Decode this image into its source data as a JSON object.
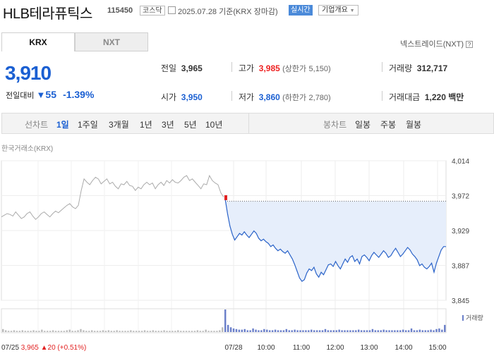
{
  "header": {
    "name": "HLB테라퓨틱스",
    "code": "115450",
    "market": "코스닥",
    "date": "2025.07.28",
    "basis": "기준(KRX 장마감)",
    "realtime": "실시간",
    "overview": "기업개요"
  },
  "tabs": {
    "krx": "KRX",
    "nxt": "NXT",
    "nxt_link": "넥스트레이드(NXT)"
  },
  "quote": {
    "price": "3,910",
    "change_label": "전일대비",
    "change": "55",
    "change_pct": "-1.39%"
  },
  "stats": {
    "prev_label": "전일",
    "prev": "3,965",
    "high_label": "고가",
    "high": "3,985",
    "upper_label": "(상한가",
    "upper": "5,150)",
    "volume_label": "거래량",
    "volume": "312,717",
    "open_label": "시가",
    "open": "3,950",
    "low_label": "저가",
    "low": "3,860",
    "lower_label": "(하한가",
    "lower": "2,780)",
    "amount_label": "거래대금",
    "amount": "1,220 백만"
  },
  "periods": {
    "line_label": "선차트",
    "items": [
      "1일",
      "1주일",
      "3개월",
      "1년",
      "3년",
      "5년",
      "10년"
    ],
    "candle_label": "봉차트",
    "candles": [
      "일봉",
      "주봉",
      "월봉"
    ]
  },
  "chart_data": {
    "type": "line",
    "source": "한국거래소(KRX)",
    "y_ticks": [
      "4,014",
      "3,972",
      "3,929",
      "3,887",
      "3,845"
    ],
    "ylim": [
      3845,
      4014
    ],
    "prev_close": 3965,
    "x_ticks": [
      "07/28",
      "10:00",
      "11:00",
      "12:00",
      "13:00",
      "14:00",
      "15:00"
    ],
    "volume_label": "거래량",
    "prev_day": {
      "date": "07/25",
      "close": "3,965",
      "change": "20",
      "pct": "(+0.51%)"
    },
    "prev_series": [
      3946,
      3948,
      3950,
      3949,
      3947,
      3952,
      3948,
      3944,
      3946,
      3950,
      3952,
      3947,
      3943,
      3946,
      3950,
      3952,
      3949,
      3946,
      3950,
      3953,
      3951,
      3954,
      3957,
      3960,
      3962,
      3958,
      3956,
      3960,
      3978,
      3992,
      3988,
      3985,
      3990,
      3994,
      3992,
      3986,
      3989,
      3992,
      3986,
      3988,
      3983,
      3980,
      3986,
      3985,
      3989,
      3984,
      3983,
      3978,
      3982,
      3980,
      3985,
      3988,
      3985,
      3987,
      3980,
      3985,
      3988,
      3984,
      3990,
      3987,
      3991,
      3988,
      3987,
      3990,
      3994,
      3996,
      3990,
      3992,
      3988,
      3984,
      3980,
      3986,
      3985,
      3996,
      3990,
      3987,
      3985,
      3975,
      3970
    ],
    "day_series": [
      3968,
      3950,
      3935,
      3925,
      3918,
      3922,
      3926,
      3924,
      3928,
      3924,
      3921,
      3925,
      3929,
      3926,
      3920,
      3917,
      3919,
      3916,
      3914,
      3910,
      3912,
      3908,
      3905,
      3907,
      3904,
      3902,
      3905,
      3900,
      3895,
      3888,
      3880,
      3872,
      3868,
      3870,
      3878,
      3883,
      3881,
      3885,
      3877,
      3873,
      3879,
      3876,
      3882,
      3888,
      3889,
      3886,
      3892,
      3887,
      3883,
      3889,
      3895,
      3891,
      3897,
      3899,
      3892,
      3895,
      3889,
      3898,
      3900,
      3897,
      3893,
      3899,
      3903,
      3900,
      3897,
      3901,
      3905,
      3902,
      3897,
      3899,
      3904,
      3908,
      3903,
      3898,
      3901,
      3905,
      3909,
      3906,
      3901,
      3898,
      3894,
      3887,
      3889,
      3885,
      3883,
      3886,
      3890,
      3879,
      3890,
      3898,
      3906,
      3910,
      3910
    ],
    "volumes": [
      5,
      3,
      2,
      2,
      3,
      2,
      2,
      3,
      2,
      2,
      2,
      3,
      2,
      2,
      4,
      2,
      2,
      2,
      3,
      2,
      2,
      2,
      2,
      3,
      4,
      2,
      2,
      3,
      5,
      3,
      2,
      2,
      3,
      2,
      2,
      2,
      3,
      2,
      3,
      2,
      2,
      3,
      2,
      2,
      2,
      2,
      3,
      2,
      2,
      2,
      2,
      3,
      2,
      2,
      3,
      2,
      2,
      2,
      3,
      2,
      2,
      2,
      2,
      3,
      2,
      2,
      2,
      2,
      2,
      2,
      3,
      2,
      2,
      4,
      2,
      2,
      2,
      2,
      3,
      8,
      38,
      12,
      8,
      6,
      5,
      4,
      4,
      5,
      3,
      3,
      6,
      4,
      3,
      3,
      5,
      4,
      3,
      3,
      4,
      3,
      3,
      3,
      5,
      3,
      3,
      4,
      3,
      3,
      3,
      3,
      3,
      4,
      3,
      3,
      3,
      3,
      5,
      3,
      3,
      3,
      3,
      4,
      3,
      3,
      3,
      3,
      3,
      3,
      4,
      3,
      3,
      3,
      3,
      5,
      3,
      3,
      3,
      4,
      3,
      3,
      3,
      3,
      3,
      3,
      4,
      3,
      3,
      6,
      3,
      3,
      4,
      3,
      3,
      3,
      4,
      3,
      5,
      6,
      4,
      12
    ],
    "grid": true
  },
  "colors": {
    "up": "#e22222",
    "down": "#1a5fd2",
    "line": "#2a63c9",
    "prev_line": "#aaaaaa",
    "fill": "#e6eefb"
  }
}
